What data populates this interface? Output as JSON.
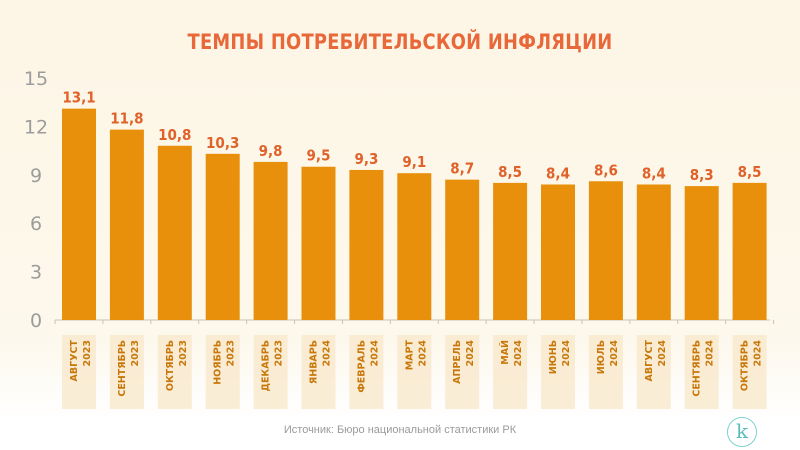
{
  "chart_data": {
    "type": "bar",
    "title": "ТЕМПЫ ПОТРЕБИТЕЛЬСКОЙ ИНФЛЯЦИИ",
    "categories": [
      {
        "month": "АВГУСТ",
        "year": "2023"
      },
      {
        "month": "СЕНТЯБРЬ",
        "year": "2023"
      },
      {
        "month": "ОКТЯБРЬ",
        "year": "2023"
      },
      {
        "month": "НОЯБРЬ",
        "year": "2023"
      },
      {
        "month": "ДЕКАБРЬ",
        "year": "2023"
      },
      {
        "month": "ЯНВАРЬ",
        "year": "2024"
      },
      {
        "month": "ФЕВРАЛЬ",
        "year": "2024"
      },
      {
        "month": "МАРТ",
        "year": "2024"
      },
      {
        "month": "АПРЕЛЬ",
        "year": "2024"
      },
      {
        "month": "МАЙ",
        "year": "2024"
      },
      {
        "month": "ИЮНЬ",
        "year": "2024"
      },
      {
        "month": "ИЮЛЬ",
        "year": "2024"
      },
      {
        "month": "АВГУСТ",
        "year": "2024"
      },
      {
        "month": "СЕНТЯБРЬ",
        "year": "2024"
      },
      {
        "month": "ОКТЯБРЬ",
        "year": "2024"
      }
    ],
    "values": [
      13.1,
      11.8,
      10.8,
      10.3,
      9.8,
      9.5,
      9.3,
      9.1,
      8.7,
      8.5,
      8.4,
      8.6,
      8.4,
      8.3,
      8.5
    ],
    "value_labels": [
      "13,1",
      "11,8",
      "10,8",
      "10,3",
      "9,8",
      "9,5",
      "9,3",
      "9,1",
      "8,7",
      "8,5",
      "8,4",
      "8,6",
      "8,4",
      "8,3",
      "8,5"
    ],
    "yticks": [
      0,
      3,
      6,
      9,
      12,
      15
    ],
    "ylim": [
      0,
      15
    ],
    "xlabel": "",
    "ylabel": "",
    "grid": false,
    "colors": {
      "bar": "#e8900c",
      "value_label": "#e0622a",
      "title": "#e8683a",
      "category_label": "#c8780a",
      "label_bg": "#f9e8cc"
    }
  },
  "source": "Источник: Бюро национальной статистики РК",
  "logo": "k"
}
